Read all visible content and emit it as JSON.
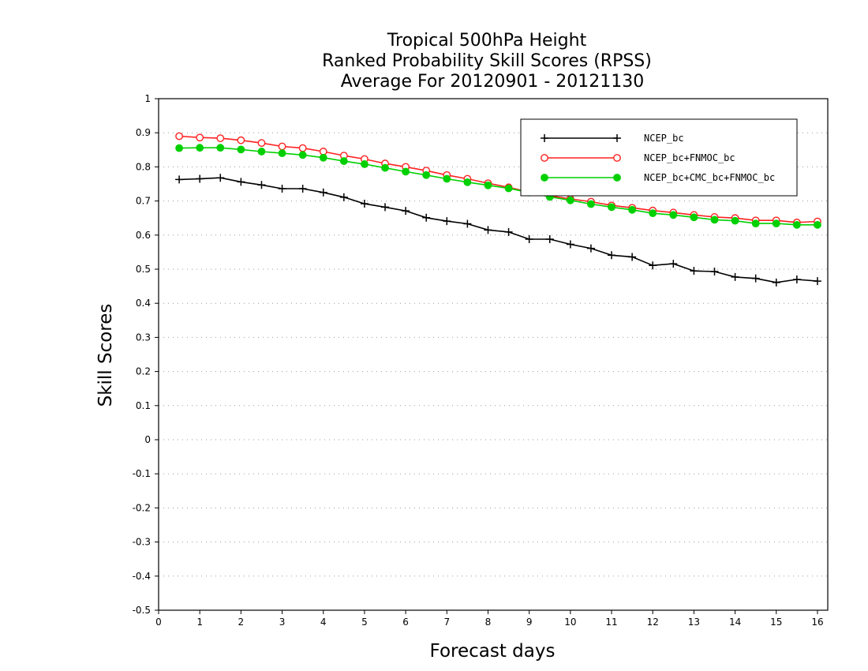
{
  "chart_data": {
    "type": "line",
    "title": [
      "Tropical 500hPa Height",
      "Ranked Probability Skill Scores (RPSS)",
      "Average For 20120901 - 20121130"
    ],
    "xlabel": "Forecast days",
    "ylabel": "Skill Scores",
    "xlim": [
      0,
      16.25
    ],
    "ylim": [
      -0.5,
      1
    ],
    "xticks": [
      "0",
      "1",
      "2",
      "3",
      "4",
      "5",
      "6",
      "7",
      "8",
      "9",
      "10",
      "11",
      "12",
      "13",
      "14",
      "15",
      "16"
    ],
    "yticks": [
      "1",
      "0.9",
      "0.8",
      "0.7",
      "0.6",
      "0.5",
      "0.4",
      "0.3",
      "0.2",
      "0.1",
      "0",
      "-0.1",
      "-0.2",
      "-0.3",
      "-0.4",
      "-0.5"
    ],
    "grid": "horizontal dotted",
    "legend_position": "top-right",
    "x": [
      0.5,
      1,
      1.5,
      2,
      2.5,
      3,
      3.5,
      4,
      4.5,
      5,
      5.5,
      6,
      6.5,
      7,
      7.5,
      8,
      8.5,
      9,
      9.5,
      10,
      10.5,
      11,
      11.5,
      12,
      12.5,
      13,
      13.5,
      14,
      14.5,
      15,
      15.5,
      16
    ],
    "series": [
      {
        "name": "NCEP_bc",
        "color": "#000000",
        "marker": "plus",
        "values": [
          0.763,
          0.765,
          0.768,
          0.756,
          0.747,
          0.736,
          0.736,
          0.725,
          0.711,
          0.692,
          0.682,
          0.671,
          0.651,
          0.641,
          0.633,
          0.615,
          0.609,
          0.588,
          0.588,
          0.573,
          0.561,
          0.541,
          0.536,
          0.511,
          0.516,
          0.495,
          0.493,
          0.477,
          0.473,
          0.461,
          0.47,
          0.465
        ]
      },
      {
        "name": "NCEP_bc+FNMOC_bc",
        "color": "#ff2020",
        "marker": "open-circle",
        "values": [
          0.89,
          0.886,
          0.884,
          0.878,
          0.87,
          0.86,
          0.855,
          0.845,
          0.833,
          0.823,
          0.81,
          0.8,
          0.789,
          0.776,
          0.765,
          0.752,
          0.74,
          0.726,
          0.715,
          0.706,
          0.698,
          0.687,
          0.68,
          0.672,
          0.666,
          0.659,
          0.653,
          0.65,
          0.643,
          0.643,
          0.637,
          0.64
        ]
      },
      {
        "name": "NCEP_bc+CMC_bc+FNMOC_bc",
        "color": "#00d000",
        "marker": "filled-circle",
        "values": [
          0.855,
          0.856,
          0.856,
          0.851,
          0.845,
          0.84,
          0.835,
          0.827,
          0.817,
          0.808,
          0.797,
          0.786,
          0.776,
          0.765,
          0.755,
          0.746,
          0.737,
          0.725,
          0.712,
          0.702,
          0.691,
          0.682,
          0.674,
          0.664,
          0.659,
          0.652,
          0.645,
          0.642,
          0.634,
          0.634,
          0.63,
          0.63
        ]
      }
    ]
  }
}
